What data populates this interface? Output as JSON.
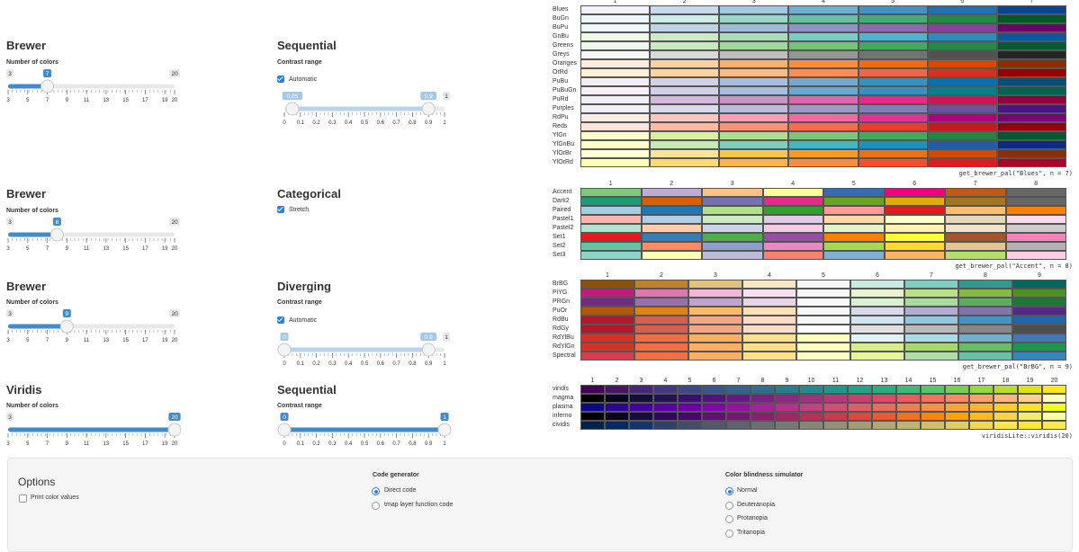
{
  "colors": {
    "slider_fill": "#428bca",
    "slider_track": "#e8e8e8",
    "slider_range_light": "#b7d4ec",
    "label_on": "#428bca",
    "label_light": "#a4c8e8",
    "checkbox": "#2d7fe0"
  },
  "rows": [
    {
      "left": {
        "title": "Brewer",
        "subtitle": "Number of colors",
        "slider": {
          "min": 3,
          "max": 20,
          "value": 7,
          "min_label": "3",
          "max_label": "20",
          "value_label": "7",
          "ticks": [
            "3",
            "5",
            "7",
            "9",
            "11",
            "13",
            "15",
            "17",
            "19",
            "20"
          ]
        }
      },
      "middle": {
        "title": "Sequential",
        "subtitle": "Contrast range",
        "checkbox_label": "Automatic",
        "range": {
          "min": 0,
          "max": 1,
          "from": 0.05,
          "to": 0.9,
          "from_label": "0.05",
          "to_label": "0.9",
          "max_label": "1",
          "ticks": [
            "0",
            "0.1",
            "0.2",
            "0.3",
            "0.4",
            "0.5",
            "0.6",
            "0.7",
            "0.8",
            "0.9",
            "1"
          ],
          "disabled": true
        }
      },
      "palette": {
        "names": [
          "Blues",
          "BuGn",
          "BuPu",
          "GnBu",
          "Greens",
          "Greys",
          "Oranges",
          "OrRd",
          "PuBu",
          "PuBuGn",
          "PuRd",
          "Purples",
          "RdPu",
          "Reds",
          "YlGn",
          "YlGnBu",
          "YlOrBr",
          "YlOrRd"
        ],
        "col_labels": [
          "1",
          "2",
          "3",
          "4",
          "5",
          "6",
          "7"
        ],
        "colors": [
          [
            "#eff3ff",
            "#c6dbef",
            "#9ecae1",
            "#6baed6",
            "#4292c6",
            "#2171b5",
            "#084594"
          ],
          [
            "#edf8fb",
            "#ccece6",
            "#99d8c9",
            "#66c2a4",
            "#41ae76",
            "#238b45",
            "#005824"
          ],
          [
            "#edf8fb",
            "#bfd3e6",
            "#9ebcda",
            "#8c96c6",
            "#8c6bb1",
            "#88419d",
            "#6e016b"
          ],
          [
            "#f0f9e8",
            "#ccebc5",
            "#a8ddb5",
            "#7bccc4",
            "#4eb3d3",
            "#2b8cbe",
            "#08589e"
          ],
          [
            "#edf8e9",
            "#c7e9c0",
            "#a1d99b",
            "#74c476",
            "#41ab5d",
            "#238b45",
            "#005a32"
          ],
          [
            "#f7f7f7",
            "#d9d9d9",
            "#bdbdbd",
            "#969696",
            "#737373",
            "#525252",
            "#252525"
          ],
          [
            "#feedde",
            "#fdd0a2",
            "#fdae6b",
            "#fd8d3c",
            "#f16913",
            "#d94801",
            "#8c2d04"
          ],
          [
            "#fef0d9",
            "#fdd49e",
            "#fdbb84",
            "#fc8d59",
            "#ef6548",
            "#d7301f",
            "#990000"
          ],
          [
            "#f1eef6",
            "#d0d1e6",
            "#a6bddb",
            "#74a9cf",
            "#3690c0",
            "#0570b0",
            "#034e7b"
          ],
          [
            "#f6eff7",
            "#d0d1e6",
            "#a6bddb",
            "#67a9cf",
            "#3690c0",
            "#02818a",
            "#016450"
          ],
          [
            "#f1eef6",
            "#d4b9da",
            "#c994c7",
            "#df65b0",
            "#e7298a",
            "#ce1256",
            "#91003f"
          ],
          [
            "#f2f0f7",
            "#dadaeb",
            "#bcbddc",
            "#9e9ac8",
            "#807dba",
            "#6a51a3",
            "#4a1486"
          ],
          [
            "#feebe2",
            "#fcc5c0",
            "#fa9fb5",
            "#f768a1",
            "#dd3497",
            "#ae017e",
            "#7a0177"
          ],
          [
            "#fee5d9",
            "#fcbba1",
            "#fc9272",
            "#fb6a4a",
            "#ef3b2c",
            "#cb181d",
            "#99000d"
          ],
          [
            "#ffffcc",
            "#d9f0a3",
            "#addd8e",
            "#78c679",
            "#41ab5d",
            "#238443",
            "#005a32"
          ],
          [
            "#ffffcc",
            "#c7e9b4",
            "#7fcdbb",
            "#41b6c4",
            "#1d91c0",
            "#225ea8",
            "#0c2c84"
          ],
          [
            "#ffffd4",
            "#fee391",
            "#fec44f",
            "#fe9929",
            "#ec7014",
            "#cc4c02",
            "#8c2d04"
          ],
          [
            "#ffffb2",
            "#fed976",
            "#feb24c",
            "#fd8d3c",
            "#fc4e2a",
            "#e31a1c",
            "#b10026"
          ]
        ],
        "caption": "get_brewer_pal(\"Blues\", n = 7)"
      }
    },
    {
      "left": {
        "title": "Brewer",
        "subtitle": "Number of colors",
        "slider": {
          "min": 3,
          "max": 20,
          "value": 8,
          "min_label": "3",
          "max_label": "20",
          "value_label": "8",
          "ticks": [
            "3",
            "5",
            "7",
            "9",
            "11",
            "13",
            "15",
            "17",
            "19",
            "20"
          ]
        }
      },
      "middle": {
        "title": "Categorical",
        "checkbox_label": "Stretch"
      },
      "palette": {
        "names": [
          "Accent",
          "Dark2",
          "Paired",
          "Pastel1",
          "Pastel2",
          "Set1",
          "Set2",
          "Set3"
        ],
        "col_labels": [
          "1",
          "2",
          "3",
          "4",
          "5",
          "6",
          "7",
          "8"
        ],
        "colors": [
          [
            "#7fc97f",
            "#beaed4",
            "#fdc086",
            "#ffff99",
            "#386cb0",
            "#f0027f",
            "#bf5b17",
            "#666666"
          ],
          [
            "#1b9e77",
            "#d95f02",
            "#7570b3",
            "#e7298a",
            "#66a61e",
            "#e6ab02",
            "#a6761d",
            "#666666"
          ],
          [
            "#a6cee3",
            "#1f78b4",
            "#b2df8a",
            "#33a02c",
            "#fb9a99",
            "#e31a1c",
            "#fdbf6f",
            "#ff7f00"
          ],
          [
            "#fbb4ae",
            "#b3cde3",
            "#ccebc5",
            "#decbe4",
            "#fed9a6",
            "#ffffcc",
            "#e5d8bd",
            "#fddaec"
          ],
          [
            "#b3e2cd",
            "#fdcdac",
            "#cbd5e8",
            "#f4cae4",
            "#e6f5c9",
            "#fff2ae",
            "#f1e2cc",
            "#cccccc"
          ],
          [
            "#e41a1c",
            "#377eb8",
            "#4daf4a",
            "#984ea3",
            "#ff7f00",
            "#ffff33",
            "#a65628",
            "#f781bf"
          ],
          [
            "#66c2a5",
            "#fc8d62",
            "#8da0cb",
            "#e78ac3",
            "#a6d854",
            "#ffd92f",
            "#e5c494",
            "#b3b3b3"
          ],
          [
            "#8dd3c7",
            "#ffffb3",
            "#bebada",
            "#fb8072",
            "#80b1d3",
            "#fdb462",
            "#b3de69",
            "#fccde5"
          ]
        ],
        "caption": "get_brewer_pal(\"Accent\", n = 8)"
      }
    },
    {
      "left": {
        "title": "Brewer",
        "subtitle": "Number of colors",
        "slider": {
          "min": 3,
          "max": 20,
          "value": 9,
          "min_label": "3",
          "max_label": "20",
          "value_label": "9",
          "ticks": [
            "3",
            "5",
            "7",
            "9",
            "11",
            "13",
            "15",
            "17",
            "19",
            "20"
          ]
        }
      },
      "middle": {
        "title": "Diverging",
        "subtitle": "Contrast range",
        "checkbox_label": "Automatic",
        "range": {
          "min": 0,
          "max": 1,
          "from": 0,
          "to": 0.9,
          "from_label": "0",
          "to_label": "0.9",
          "max_label": "1",
          "ticks": [
            "0",
            "0.1",
            "0.2",
            "0.3",
            "0.4",
            "0.5",
            "0.6",
            "0.7",
            "0.8",
            "0.9",
            "1"
          ],
          "disabled": true
        }
      },
      "palette": {
        "names": [
          "BrBG",
          "PiYG",
          "PRGn",
          "PuOr",
          "RdBu",
          "RdGy",
          "RdYlBu",
          "RdYlGn",
          "Spectral"
        ],
        "col_labels": [
          "1",
          "2",
          "3",
          "4",
          "5",
          "6",
          "7",
          "8",
          "9"
        ],
        "colors": [
          [
            "#8c510a",
            "#bf812d",
            "#dfc27d",
            "#f6e8c3",
            "#f5f5f5",
            "#c7eae5",
            "#80cdc1",
            "#35978f",
            "#01665e"
          ],
          [
            "#c51b7d",
            "#de77ae",
            "#f1b6da",
            "#fde0ef",
            "#f7f7f7",
            "#e6f5d0",
            "#b8e186",
            "#7fbc41",
            "#4d9221"
          ],
          [
            "#762a83",
            "#9970ab",
            "#c2a5cf",
            "#e7d4e8",
            "#f7f7f7",
            "#d9f0d3",
            "#a6dba0",
            "#5aae61",
            "#1b7837"
          ],
          [
            "#b35806",
            "#e08214",
            "#fdb863",
            "#fee0b6",
            "#f7f7f7",
            "#d8daeb",
            "#b2abd2",
            "#8073ac",
            "#542788"
          ],
          [
            "#b2182b",
            "#d6604d",
            "#f4a582",
            "#fddbc7",
            "#f7f7f7",
            "#d1e5f0",
            "#92c5de",
            "#4393c3",
            "#2166ac"
          ],
          [
            "#b2182b",
            "#d6604d",
            "#f4a582",
            "#fddbc7",
            "#ffffff",
            "#e0e0e0",
            "#bababa",
            "#878787",
            "#4d4d4d"
          ],
          [
            "#d73027",
            "#f46d43",
            "#fdae61",
            "#fee090",
            "#ffffbf",
            "#e0f3f8",
            "#abd9e9",
            "#74add1",
            "#4575b4"
          ],
          [
            "#d73027",
            "#f46d43",
            "#fdae61",
            "#fee08b",
            "#ffffbf",
            "#d9ef8b",
            "#a6d96a",
            "#66bd63",
            "#1a9850"
          ],
          [
            "#d53e4f",
            "#f46d43",
            "#fdae61",
            "#fee08b",
            "#ffffbf",
            "#e6f598",
            "#abdda4",
            "#66c2a5",
            "#3288bd"
          ]
        ],
        "caption": "get_brewer_pal(\"BrBG\", n = 9)"
      }
    },
    {
      "left": {
        "title": "Viridis",
        "subtitle": "Number of colors",
        "slider": {
          "min": 3,
          "max": 20,
          "value": 20,
          "min_label": "3",
          "max_label": "",
          "value_label": "20",
          "ticks": [
            "3",
            "5",
            "7",
            "9",
            "11",
            "13",
            "15",
            "17",
            "19",
            "20"
          ]
        }
      },
      "middle": {
        "title": "Sequential",
        "subtitle": "Contrast range",
        "range": {
          "min": 0,
          "max": 1,
          "from": 0,
          "to": 1,
          "from_label": "0",
          "to_label": "1",
          "max_label": "",
          "ticks": [
            "0",
            "0.1",
            "0.2",
            "0.3",
            "0.4",
            "0.5",
            "0.6",
            "0.7",
            "0.8",
            "0.9",
            "1"
          ],
          "disabled": false
        }
      },
      "palette": {
        "names": [
          "viridis",
          "magma",
          "plasma",
          "inferno",
          "cividis"
        ],
        "col_labels": [
          "1",
          "2",
          "3",
          "4",
          "5",
          "6",
          "7",
          "8",
          "9",
          "10",
          "11",
          "12",
          "13",
          "14",
          "15",
          "16",
          "17",
          "18",
          "19",
          "20"
        ],
        "colors": [
          [
            "#440154",
            "#481568",
            "#482677",
            "#453781",
            "#3f4788",
            "#39558c",
            "#32648e",
            "#2d718e",
            "#287d8e",
            "#238a8d",
            "#1f968b",
            "#20a386",
            "#29af7f",
            "#3cbc75",
            "#56c667",
            "#75d054",
            "#95d840",
            "#bade28",
            "#dde318",
            "#fde725"
          ],
          [
            "#000004",
            "#07061c",
            "#150e37",
            "#251255",
            "#3b0f70",
            "#51127c",
            "#641a80",
            "#782281",
            "#8c2981",
            "#a1307e",
            "#b73779",
            "#ca3e72",
            "#de4968",
            "#ed5a5f",
            "#f7705c",
            "#fc8961",
            "#fe9f6d",
            "#feb77e",
            "#fecf92",
            "#fcfdbf"
          ],
          [
            "#0d0887",
            "#2d0594",
            "#44039e",
            "#5901a5",
            "#6f00a8",
            "#8305a7",
            "#9512a1",
            "#a72197",
            "#b6308b",
            "#c5407e",
            "#d14e72",
            "#dd5e66",
            "#e76e5b",
            "#f07f4f",
            "#f79044",
            "#fca338",
            "#feb72d",
            "#fccd25",
            "#f7e225",
            "#f0f921"
          ],
          [
            "#000004",
            "#08051d",
            "#180c3c",
            "#2f0a5b",
            "#450a69",
            "#5c126e",
            "#71196e",
            "#87216b",
            "#9b2964",
            "#b1325a",
            "#c43c4e",
            "#d74b3f",
            "#e55c30",
            "#f1711f",
            "#f8870e",
            "#fca108",
            "#fbba1f",
            "#f6d543",
            "#f1ed71",
            "#fcffa4"
          ],
          [
            "#00204d",
            "#002b64",
            "#12366b",
            "#2f416b",
            "#414d6b",
            "#50586c",
            "#5d636e",
            "#6b6e71",
            "#787974",
            "#868576",
            "#949077",
            "#a39c75",
            "#b2a872",
            "#c1b46e",
            "#d1c068",
            "#e0cd5f",
            "#f0da54",
            "#fde845",
            "#fde737",
            "#ffea46"
          ]
        ],
        "caption": "viridisLite::viridis(20)"
      }
    }
  ],
  "options": {
    "title": "Options",
    "print_values_label": "Print color values",
    "code_generator": {
      "title": "Code generator",
      "options": [
        "Direct code",
        "tmap layer function code"
      ],
      "selected": 0
    },
    "color_blindness": {
      "title": "Color blindness simulator",
      "options": [
        "Normal",
        "Deuteranopia",
        "Protanopia",
        "Tritanopia"
      ],
      "selected": 0
    }
  }
}
